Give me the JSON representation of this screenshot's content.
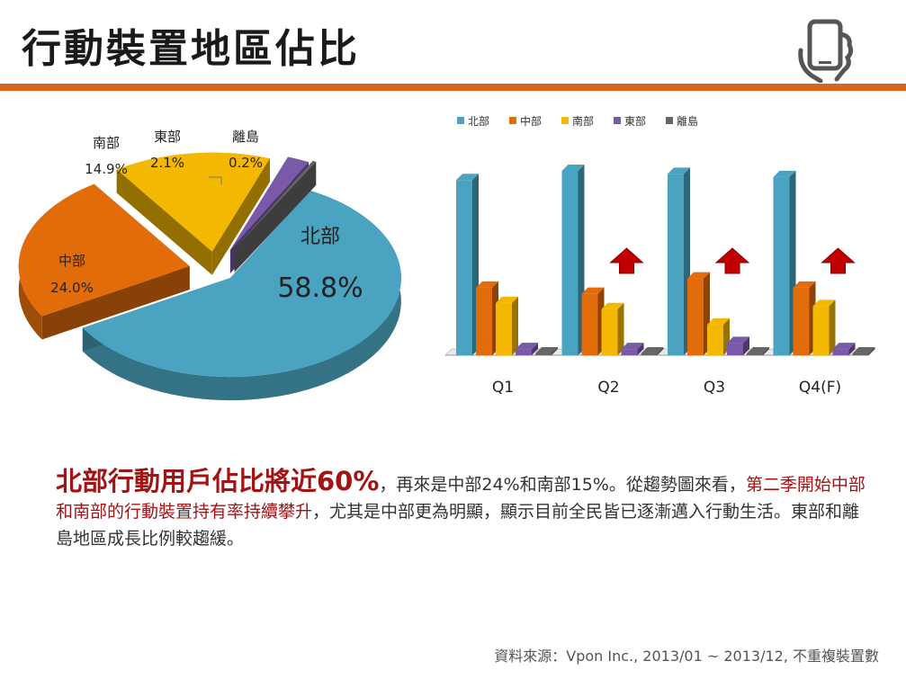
{
  "page": {
    "title": "行動裝置地區佔比"
  },
  "chart_data": [
    {
      "type": "pie",
      "slices": [
        {
          "label": "北部",
          "value": 58.8,
          "value_label": "58.8%",
          "color": "#4aa3c0"
        },
        {
          "label": "中部",
          "value": 24.0,
          "value_label": "24.0%",
          "color": "#e36c0a"
        },
        {
          "label": "南部",
          "value": 14.9,
          "value_label": "14.9%",
          "color": "#f5b800"
        },
        {
          "label": "東部",
          "value": 2.1,
          "value_label": "2.1%",
          "color": "#7a5aa8"
        },
        {
          "label": "離島",
          "value": 0.2,
          "value_label": "0.2%",
          "color": "#666666"
        }
      ]
    },
    {
      "type": "bar",
      "categories": [
        "Q1",
        "Q2",
        "Q3",
        "Q4(F)"
      ],
      "series": [
        {
          "name": "北部",
          "color": "#4aa3c0",
          "values": [
            57,
            60,
            59,
            58
          ]
        },
        {
          "name": "中部",
          "color": "#e36c0a",
          "values": [
            22,
            20,
            25,
            22
          ]
        },
        {
          "name": "南部",
          "color": "#f5b800",
          "values": [
            17,
            15,
            10,
            16
          ]
        },
        {
          "name": "東部",
          "color": "#7a5aa8",
          "values": [
            2,
            2,
            4,
            2
          ]
        },
        {
          "name": "離島",
          "color": "#666666",
          "values": [
            0.2,
            0.2,
            0.2,
            0.2
          ]
        }
      ],
      "ylim": [
        0,
        60
      ],
      "legend": "top",
      "arrows_on": [
        "Q2",
        "Q3",
        "Q4(F)"
      ]
    }
  ],
  "summary": {
    "lead": "北部行動用戶佔比將近60%",
    "part1": "，再來是中部24%和南部15%。從趨勢圖來看，",
    "highlight": "第二季開始中部和南部的行動裝置持有率持續攀升",
    "part2": "，尤其是中部更為明顯，顯示目前全民皆已逐漸邁入行動生活。東部和離島地區成長比例較趨緩。"
  },
  "source": "資料來源：Vpon Inc., 2013/01 ~ 2013/12, 不重複裝置數",
  "icons": {
    "header": "smartphone-hand-icon",
    "trend": "up-arrow-icon"
  }
}
